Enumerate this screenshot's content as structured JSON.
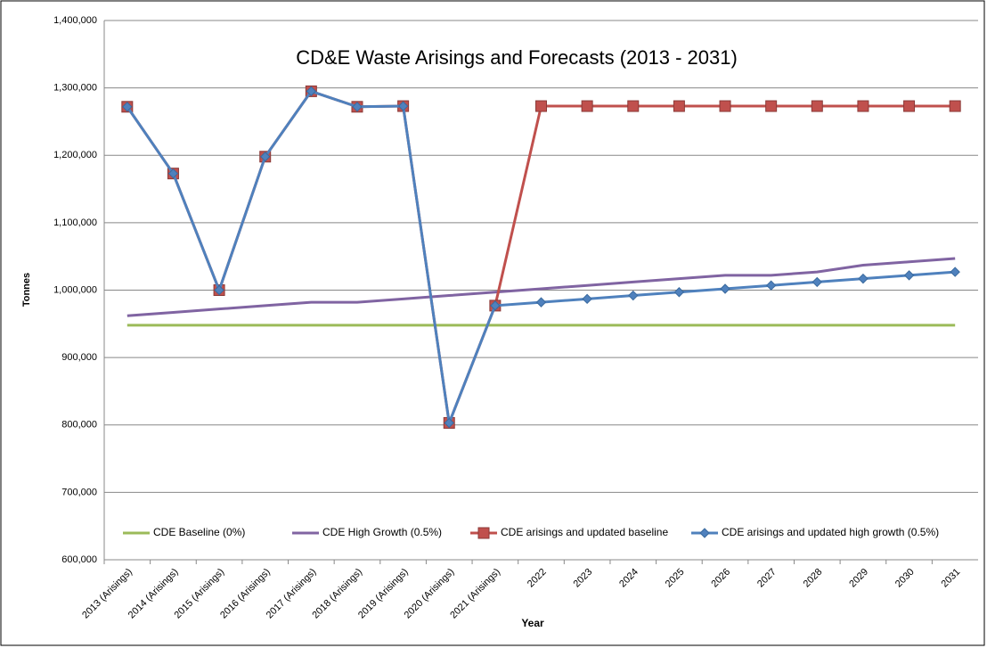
{
  "chart_data": {
    "type": "line",
    "title": "CD&E Waste Arisings and Forecasts (2013 - 2031)",
    "y_label": "Tonnes",
    "x_label": "Year",
    "categories": [
      "2013 (Arisings)",
      "2014 (Arisings)",
      "2015 (Arisings)",
      "2016 (Arisings)",
      "2017 (Arisings)",
      "2018 (Arisings)",
      "2019 (Arisings)",
      "2020 (Arisings)",
      "2021 (Arisings)",
      "2022",
      "2023",
      "2024",
      "2025",
      "2026",
      "2027",
      "2028",
      "2029",
      "2030",
      "2031"
    ],
    "series": [
      {
        "name": "CDE Baseline (0%)",
        "color": "#9bbb59",
        "marker": "none",
        "values": [
          948000,
          948000,
          948000,
          948000,
          948000,
          948000,
          948000,
          948000,
          948000,
          948000,
          948000,
          948000,
          948000,
          948000,
          948000,
          948000,
          948000,
          948000,
          948000
        ]
      },
      {
        "name": "CDE High Growth (0.5%)",
        "color": "#8064a2",
        "marker": "none",
        "values": [
          962000,
          967000,
          972000,
          977000,
          982000,
          982000,
          987000,
          992000,
          997000,
          1002000,
          1007000,
          1012000,
          1017000,
          1022000,
          1022000,
          1027000,
          1037000,
          1042000,
          1047000
        ]
      },
      {
        "name": "CDE arisings and updated baseline",
        "color": "#c0504d",
        "marker": "square",
        "values": [
          1272000,
          1173000,
          1000000,
          1198000,
          1295000,
          1272000,
          1273000,
          803000,
          977000,
          1273000,
          1273000,
          1273000,
          1273000,
          1273000,
          1273000,
          1273000,
          1273000,
          1273000,
          1273000
        ]
      },
      {
        "name": "CDE arisings and updated high growth (0.5%)",
        "color": "#4f81bd",
        "marker": "diamond",
        "values": [
          1272000,
          1173000,
          1000000,
          1198000,
          1295000,
          1272000,
          1273000,
          803000,
          977000,
          982000,
          987000,
          992000,
          997000,
          1002000,
          1007000,
          1012000,
          1017000,
          1022000,
          1027000
        ]
      }
    ],
    "ylim": [
      600000,
      1400000
    ],
    "yticks": [
      {
        "value": 600000,
        "label": "600,000"
      },
      {
        "value": 700000,
        "label": "700,000"
      },
      {
        "value": 800000,
        "label": "800,000"
      },
      {
        "value": 900000,
        "label": "900,000"
      },
      {
        "value": 1000000,
        "label": "1,000,000"
      },
      {
        "value": 1100000,
        "label": "1,100,000"
      },
      {
        "value": 1200000,
        "label": "1,200,000"
      },
      {
        "value": 1300000,
        "label": "1,300,000"
      },
      {
        "value": 1400000,
        "label": "1,400,000"
      }
    ],
    "grid": true,
    "legend": "bottom"
  }
}
